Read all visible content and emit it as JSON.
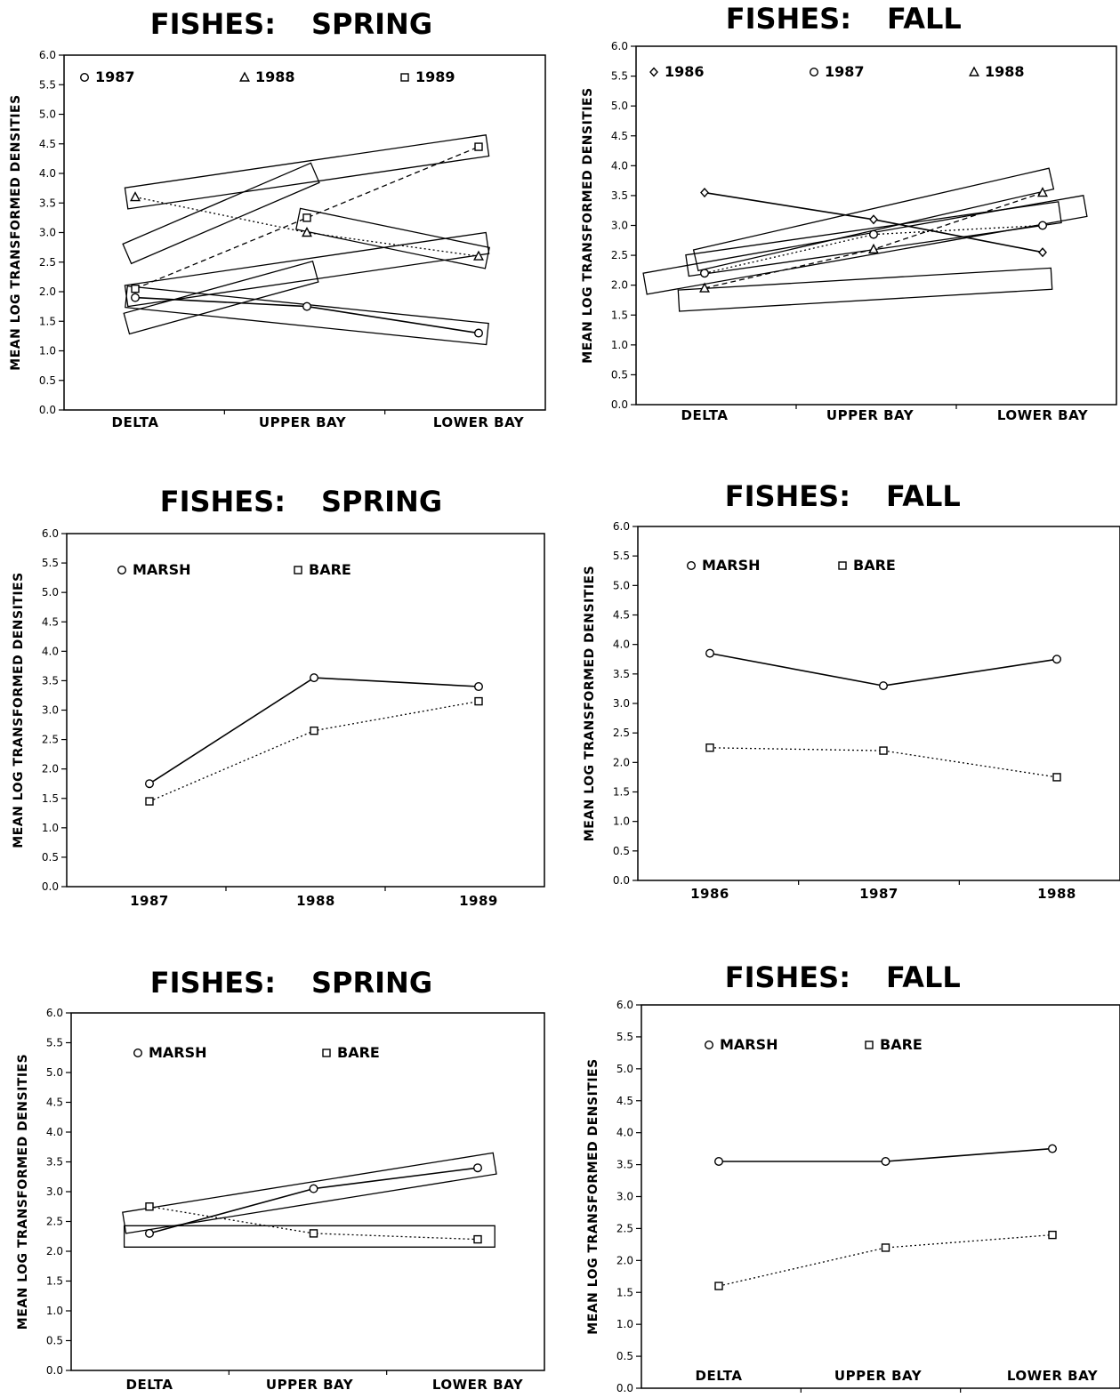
{
  "chart_data": [
    {
      "type": "line",
      "title_left": "FISHES:",
      "title_right": "SPRING",
      "ylabel": "MEAN LOG TRANSFORMED DENSITIES",
      "ylim": [
        0,
        6
      ],
      "yticks": [
        "0.0",
        "0.5",
        "1.0",
        "1.5",
        "2.0",
        "2.5",
        "3.0",
        "3.5",
        "4.0",
        "4.5",
        "5.0",
        "5.5",
        "6.0"
      ],
      "categories": [
        "DELTA",
        "UPPER BAY",
        "LOWER BAY"
      ],
      "legend_position": "top",
      "series": [
        {
          "name": "1987",
          "marker": "circle",
          "dash": "solid",
          "values": [
            1.9,
            1.75,
            1.3
          ]
        },
        {
          "name": "1988",
          "marker": "triangle",
          "dash": "dotted",
          "values": [
            3.6,
            3.0,
            2.6
          ]
        },
        {
          "name": "1989",
          "marker": "square",
          "dash": "dashed",
          "values": [
            2.05,
            3.25,
            4.45
          ]
        }
      ],
      "boxes": [
        {
          "from": [
            0,
            1.5
          ],
          "to": [
            1,
            2.3
          ]
        },
        {
          "from": [
            0,
            2.7
          ],
          "to": [
            1,
            3.95
          ]
        },
        {
          "from": [
            0,
            3.6
          ],
          "to": [
            2,
            4.45
          ]
        },
        {
          "from": [
            0,
            1.95
          ],
          "to": [
            2,
            2.8
          ]
        },
        {
          "from": [
            0,
            1.9
          ],
          "to": [
            2,
            1.3
          ]
        },
        {
          "from": [
            1,
            3.2
          ],
          "to": [
            2,
            2.6
          ]
        }
      ]
    },
    {
      "type": "line",
      "title_left": "FISHES:",
      "title_right": "FALL",
      "ylabel": "MEAN LOG TRANSFORMED DENSITIES",
      "ylim": [
        0,
        6
      ],
      "yticks": [
        "0.0",
        "0.5",
        "1.0",
        "1.5",
        "2.0",
        "2.5",
        "3.0",
        "3.5",
        "4.0",
        "4.5",
        "5.0",
        "5.5",
        "6.0"
      ],
      "categories": [
        "DELTA",
        "UPPER BAY",
        "LOWER BAY"
      ],
      "legend_position": "top",
      "series": [
        {
          "name": "1986",
          "marker": "diamond",
          "dash": "solid",
          "values": [
            3.55,
            3.1,
            2.55
          ]
        },
        {
          "name": "1987",
          "marker": "circle",
          "dash": "dotted",
          "values": [
            2.2,
            2.85,
            3.0
          ]
        },
        {
          "name": "1988",
          "marker": "triangle",
          "dash": "dashed",
          "values": [
            1.95,
            2.6,
            3.55
          ]
        }
      ],
      "boxes": [
        {
          "from": [
            0,
            2.45
          ],
          "to": [
            2,
            3.75
          ]
        },
        {
          "from": [
            -0.3,
            2.05
          ],
          "to": [
            2.2,
            3.3
          ]
        },
        {
          "from": [
            -0.1,
            1.75
          ],
          "to": [
            2,
            2.1
          ]
        },
        {
          "from": [
            -0.05,
            2.35
          ],
          "to": [
            2.05,
            3.2
          ]
        }
      ]
    },
    {
      "type": "line",
      "title_left": "FISHES:",
      "title_right": "SPRING",
      "ylabel": "MEAN LOG TRANSFORMED DENSITIES",
      "ylim": [
        0,
        6
      ],
      "yticks": [
        "0.0",
        "0.5",
        "1.0",
        "1.5",
        "2.0",
        "2.5",
        "3.0",
        "3.5",
        "4.0",
        "4.5",
        "5.0",
        "5.5",
        "6.0"
      ],
      "categories": [
        "1987",
        "1988",
        "1989"
      ],
      "legend_position": "top",
      "series": [
        {
          "name": "MARSH",
          "marker": "circle",
          "dash": "solid",
          "values": [
            1.75,
            3.55,
            3.4
          ]
        },
        {
          "name": "BARE",
          "marker": "square",
          "dash": "dotted",
          "values": [
            1.45,
            2.65,
            3.15
          ]
        }
      ],
      "boxes": []
    },
    {
      "type": "line",
      "title_left": "FISHES:",
      "title_right": "FALL",
      "ylabel": "MEAN LOG TRANSFORMED DENSITIES",
      "ylim": [
        0,
        6
      ],
      "yticks": [
        "0.0",
        "0.5",
        "1.0",
        "1.5",
        "2.0",
        "2.5",
        "3.0",
        "3.5",
        "4.0",
        "4.5",
        "5.0",
        "5.5",
        "6.0"
      ],
      "categories": [
        "1986",
        "1987",
        "1988"
      ],
      "legend_position": "top",
      "series": [
        {
          "name": "MARSH",
          "marker": "circle",
          "dash": "solid",
          "values": [
            3.85,
            3.3,
            3.75
          ]
        },
        {
          "name": "BARE",
          "marker": "square",
          "dash": "dotted",
          "values": [
            2.25,
            2.2,
            1.75
          ]
        }
      ],
      "boxes": []
    },
    {
      "type": "line",
      "title_left": "FISHES:",
      "title_right": "SPRING",
      "ylabel": "MEAN LOG TRANSFORMED DENSITIES",
      "ylim": [
        0,
        6
      ],
      "yticks": [
        "0.0",
        "0.5",
        "1.0",
        "1.5",
        "2.0",
        "2.5",
        "3.0",
        "3.5",
        "4.0",
        "4.5",
        "5.0",
        "5.5",
        "6.0"
      ],
      "categories": [
        "DELTA",
        "UPPER BAY",
        "LOWER BAY"
      ],
      "legend_position": "top",
      "series": [
        {
          "name": "MARSH",
          "marker": "circle",
          "dash": "solid",
          "values": [
            2.3,
            3.05,
            3.4
          ]
        },
        {
          "name": "BARE",
          "marker": "square",
          "dash": "dotted",
          "values": [
            2.75,
            2.3,
            2.2
          ]
        }
      ],
      "boxes": [
        {
          "from": [
            -0.1,
            2.5
          ],
          "to": [
            2.05,
            3.45
          ]
        },
        {
          "from": [
            -0.1,
            2.25
          ],
          "to": [
            2.05,
            2.25
          ]
        }
      ]
    },
    {
      "type": "line",
      "title_left": "FISHES:",
      "title_right": "FALL",
      "ylabel": "MEAN LOG TRANSFORMED DENSITIES",
      "ylim": [
        0,
        6
      ],
      "yticks": [
        "0.0",
        "0.5",
        "1.0",
        "1.5",
        "2.0",
        "2.5",
        "3.0",
        "3.5",
        "4.0",
        "4.5",
        "5.0",
        "5.5",
        "6.0"
      ],
      "categories": [
        "DELTA",
        "UPPER BAY",
        "LOWER BAY"
      ],
      "legend_position": "top",
      "series": [
        {
          "name": "MARSH",
          "marker": "circle",
          "dash": "solid",
          "values": [
            3.55,
            3.55,
            3.75
          ]
        },
        {
          "name": "BARE",
          "marker": "square",
          "dash": "dotted",
          "values": [
            1.6,
            2.2,
            2.4
          ]
        }
      ],
      "boxes": []
    }
  ]
}
